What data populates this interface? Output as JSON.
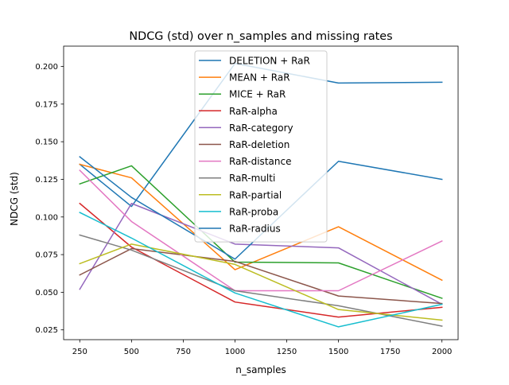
{
  "chart_data": {
    "type": "line",
    "title": "NDCG (std) over n_samples and missing rates",
    "xlabel": "n_samples",
    "ylabel": "NDCG (std)",
    "xlim": [
      172,
      2078
    ],
    "ylim": [
      0.0185,
      0.2135
    ],
    "xticks": [
      250,
      500,
      750,
      1000,
      1250,
      1500,
      1750,
      2000
    ],
    "xtick_labels": [
      "250",
      "500",
      "750",
      "1000",
      "1250",
      "1500",
      "1750",
      "2000"
    ],
    "yticks": [
      0.025,
      0.05,
      0.075,
      0.1,
      0.125,
      0.15,
      0.175,
      0.2
    ],
    "ytick_labels": [
      "0.025",
      "0.050",
      "0.075",
      "0.100",
      "0.125",
      "0.150",
      "0.175",
      "0.200"
    ],
    "grid": false,
    "legend_position": "top-center",
    "x": [
      250,
      500,
      1000,
      1500,
      2000
    ],
    "series": [
      {
        "name": "DELETION + RaR",
        "color": "#1f77b4",
        "values": [
          0.135,
          0.107,
          0.202,
          0.189,
          0.1895
        ]
      },
      {
        "name": "MEAN + RaR",
        "color": "#ff7f0e",
        "values": [
          0.135,
          0.126,
          0.065,
          0.0935,
          0.058
        ]
      },
      {
        "name": "MICE + RaR",
        "color": "#2ca02c",
        "values": [
          0.122,
          0.134,
          0.07,
          0.0695,
          0.046
        ]
      },
      {
        "name": "RaR-alpha",
        "color": "#d62728",
        "values": [
          0.109,
          0.08,
          0.0435,
          0.0335,
          0.04
        ]
      },
      {
        "name": "RaR-category",
        "color": "#9467bd",
        "values": [
          0.052,
          0.109,
          0.082,
          0.0795,
          0.042
        ]
      },
      {
        "name": "RaR-deletion",
        "color": "#8c564b",
        "values": [
          0.0615,
          0.079,
          0.0705,
          0.0475,
          0.0425
        ]
      },
      {
        "name": "RaR-distance",
        "color": "#e377c2",
        "values": [
          0.131,
          0.097,
          0.051,
          0.051,
          0.084
        ]
      },
      {
        "name": "RaR-multi",
        "color": "#7f7f7f",
        "values": [
          0.088,
          0.078,
          0.051,
          0.041,
          0.0275
        ]
      },
      {
        "name": "RaR-partial",
        "color": "#bcbd22",
        "values": [
          0.069,
          0.082,
          0.0685,
          0.0385,
          0.0315
        ]
      },
      {
        "name": "RaR-proba",
        "color": "#17becf",
        "values": [
          0.103,
          0.086,
          0.0495,
          0.027,
          0.042
        ]
      },
      {
        "name": "RaR-radius",
        "color": "#1f77b4",
        "values": [
          0.14,
          0.113,
          0.072,
          0.137,
          0.125
        ]
      }
    ]
  }
}
